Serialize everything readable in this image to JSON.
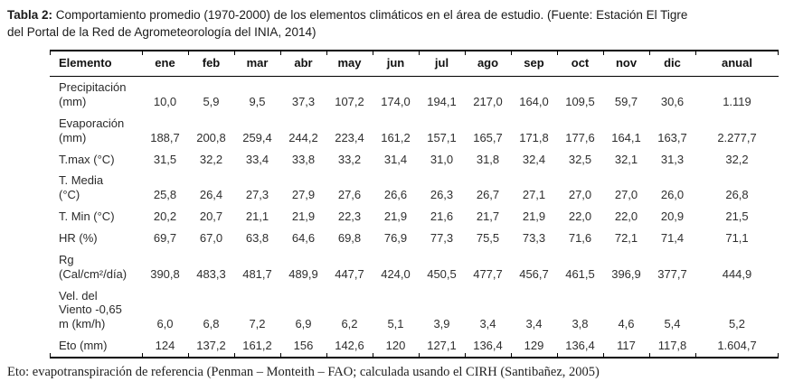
{
  "caption": {
    "label": "Tabla 2:",
    "line1": " Comportamiento promedio (1970-2000) de los elementos climáticos en el área de estudio. (Fuente: Estación El Tigre",
    "line2": "del Portal de la Red de Agrometeorología del INIA, 2014)"
  },
  "table": {
    "element_header": "Elemento",
    "columns": [
      "ene",
      "feb",
      "mar",
      "abr",
      "may",
      "jun",
      "jul",
      "ago",
      "sep",
      "oct",
      "nov",
      "dic",
      "anual"
    ],
    "rows": [
      {
        "label_lines": [
          "Precipitación",
          "(mm)"
        ],
        "values": [
          "10,0",
          "5,9",
          "9,5",
          "37,3",
          "107,2",
          "174,0",
          "194,1",
          "217,0",
          "164,0",
          "109,5",
          "59,7",
          "30,6",
          "1.119"
        ]
      },
      {
        "label_lines": [
          "Evaporación",
          "(mm)"
        ],
        "values": [
          "188,7",
          "200,8",
          "259,4",
          "244,2",
          "223,4",
          "161,2",
          "157,1",
          "165,7",
          "171,8",
          "177,6",
          "164,1",
          "163,7",
          "2.277,7"
        ]
      },
      {
        "label_lines": [
          "T.max (°C)"
        ],
        "values": [
          "31,5",
          "32,2",
          "33,4",
          "33,8",
          "33,2",
          "31,4",
          "31,0",
          "31,8",
          "32,4",
          "32,5",
          "32,1",
          "31,3",
          "32,2"
        ]
      },
      {
        "label_lines": [
          "T. Media",
          "(°C)"
        ],
        "values": [
          "25,8",
          "26,4",
          "27,3",
          "27,9",
          "27,6",
          "26,6",
          "26,3",
          "26,7",
          "27,1",
          "27,0",
          "27,0",
          "26,0",
          "26,8"
        ]
      },
      {
        "label_lines": [
          "T. Min (°C)"
        ],
        "values": [
          "20,2",
          "20,7",
          "21,1",
          "21,9",
          "22,3",
          "21,9",
          "21,6",
          "21,7",
          "21,9",
          "22,0",
          "22,0",
          "20,9",
          "21,5"
        ]
      },
      {
        "label_lines": [
          "HR (%)"
        ],
        "values": [
          "69,7",
          "67,0",
          "63,8",
          "64,6",
          "69,8",
          "76,9",
          "77,3",
          "75,5",
          "73,3",
          "71,6",
          "72,1",
          "71,4",
          "71,1"
        ]
      },
      {
        "label_lines": [
          "Rg",
          "(Cal/cm²/día)"
        ],
        "values": [
          "390,8",
          "483,3",
          "481,7",
          "489,9",
          "447,7",
          "424,0",
          "450,5",
          "477,7",
          "456,7",
          "461,5",
          "396,9",
          "377,7",
          "444,9"
        ]
      },
      {
        "label_lines": [
          "Vel. del",
          "Viento -0,65",
          "m (km/h)"
        ],
        "values": [
          "6,0",
          "6,8",
          "7,2",
          "6,9",
          "6,2",
          "5,1",
          "3,9",
          "3,4",
          "3,4",
          "3,8",
          "4,6",
          "5,4",
          "5,2"
        ]
      },
      {
        "label_lines": [
          "Eto (mm)"
        ],
        "values": [
          "124",
          "137,2",
          "161,2",
          "156",
          "142,6",
          "120",
          "127,1",
          "136,4",
          "129",
          "136,4",
          "117",
          "117,8",
          "1.604,7"
        ]
      }
    ]
  },
  "footnote": "Eto: evapotranspiración de referencia (Penman – Monteith – FAO; calculada usando el CIRH (Santibañez, 2005)"
}
